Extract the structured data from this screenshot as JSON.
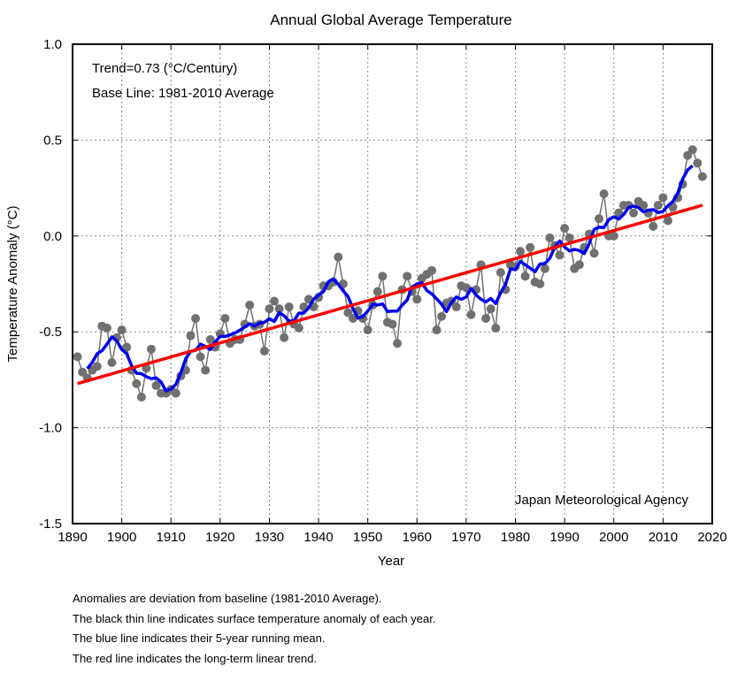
{
  "chart_data": {
    "type": "line",
    "title": "Annual Global Average Temperature",
    "xlabel": "Year",
    "ylabel": "Temperature Anomaly (°C)",
    "xlim": [
      1890,
      2020
    ],
    "ylim": [
      -1.5,
      1.0
    ],
    "xticks": [
      1890,
      1900,
      1910,
      1920,
      1930,
      1940,
      1950,
      1960,
      1970,
      1980,
      1990,
      2000,
      2010,
      2020
    ],
    "yticks": [
      1.0,
      0.5,
      0.0,
      -0.5,
      -1.0,
      -1.5
    ],
    "ytick_labels": [
      "1.0",
      "0.5",
      "0.0",
      "-0.5",
      "-1.0",
      "-1.5"
    ],
    "grid": true,
    "annotations": {
      "trend": "Trend=0.73 (°C/Century)",
      "baseline": "Base Line: 1981-2010 Average",
      "source": "Japan Meteorological Agency"
    },
    "series": [
      {
        "name": "Annual anomaly",
        "color": "#707070",
        "x_start": 1891,
        "values": [
          -0.63,
          -0.71,
          -0.74,
          -0.7,
          -0.68,
          -0.47,
          -0.48,
          -0.66,
          -0.53,
          -0.49,
          -0.58,
          -0.7,
          -0.77,
          -0.84,
          -0.69,
          -0.59,
          -0.78,
          -0.82,
          -0.82,
          -0.8,
          -0.82,
          -0.73,
          -0.7,
          -0.52,
          -0.43,
          -0.63,
          -0.7,
          -0.54,
          -0.58,
          -0.51,
          -0.43,
          -0.56,
          -0.54,
          -0.54,
          -0.46,
          -0.36,
          -0.47,
          -0.46,
          -0.6,
          -0.38,
          -0.34,
          -0.38,
          -0.53,
          -0.37,
          -0.46,
          -0.48,
          -0.37,
          -0.33,
          -0.37,
          -0.32,
          -0.26,
          -0.26,
          -0.24,
          -0.11,
          -0.25,
          -0.4,
          -0.43,
          -0.39,
          -0.43,
          -0.49,
          -0.36,
          -0.29,
          -0.21,
          -0.45,
          -0.46,
          -0.56,
          -0.28,
          -0.21,
          -0.29,
          -0.33,
          -0.22,
          -0.2,
          -0.18,
          -0.49,
          -0.42,
          -0.35,
          -0.34,
          -0.37,
          -0.26,
          -0.27,
          -0.41,
          -0.28,
          -0.15,
          -0.43,
          -0.38,
          -0.48,
          -0.19,
          -0.28,
          -0.15,
          -0.16,
          -0.08,
          -0.21,
          -0.06,
          -0.24,
          -0.25,
          -0.17,
          -0.01,
          -0.05,
          -0.1,
          0.04,
          -0.01,
          -0.17,
          -0.15,
          -0.06,
          0.01,
          -0.09,
          0.09,
          0.22,
          0.0,
          0.0,
          0.12,
          0.16,
          0.16,
          0.12,
          0.18,
          0.16,
          0.12,
          0.05,
          0.16,
          0.2,
          0.08,
          0.15,
          0.2,
          0.27,
          0.42,
          0.45,
          0.38,
          0.31
        ]
      },
      {
        "name": "5-year running mean",
        "color": "#0000ee",
        "window": 5
      },
      {
        "name": "Linear trend",
        "color": "#ff0000",
        "x": [
          1891,
          2018
        ],
        "values": [
          -0.77,
          0.16
        ]
      }
    ]
  },
  "notes": [
    "Anomalies are deviation from baseline (1981-2010 Average).",
    "The black thin line indicates surface temperature anomaly of each year.",
    "The blue line indicates their 5-year running mean.",
    "The red line indicates the long-term linear trend."
  ]
}
